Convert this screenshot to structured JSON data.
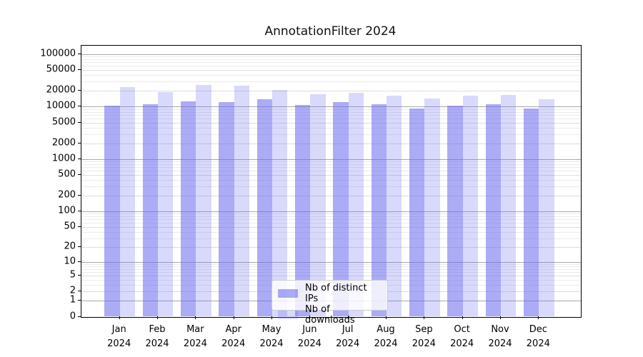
{
  "chart_data": {
    "type": "bar",
    "title": "AnnotationFilter 2024",
    "categories": [
      "Jan",
      "Feb",
      "Mar",
      "Apr",
      "May",
      "Jun",
      "Jul",
      "Aug",
      "Sep",
      "Oct",
      "Nov",
      "Dec"
    ],
    "category_year": "2024",
    "series": [
      {
        "name": "Nb of distinct IPs",
        "color": "rgba(102,102,238,0.55)",
        "values": [
          10400,
          11000,
          12600,
          12100,
          13900,
          10800,
          12400,
          11100,
          9300,
          10600,
          11100,
          9300
        ]
      },
      {
        "name": "Nb of downloads",
        "color": "rgba(102,102,238,0.25)",
        "values": [
          23900,
          19000,
          25800,
          25200,
          21100,
          17100,
          18200,
          16300,
          14200,
          16300,
          16800,
          13900
        ]
      }
    ],
    "yscale": "log1p",
    "ylim": [
      0,
      145000
    ],
    "yticks": [
      0,
      1,
      2,
      5,
      10,
      20,
      50,
      100,
      200,
      500,
      1000,
      2000,
      5000,
      10000,
      20000,
      50000,
      100000
    ],
    "grid": true,
    "legend_position": "lower center",
    "colors": {
      "grid_power10": "#a9a9a9",
      "grid_labeled": "#dddddd",
      "grid_minor": "#ebebeb",
      "spine": "#000000"
    }
  }
}
